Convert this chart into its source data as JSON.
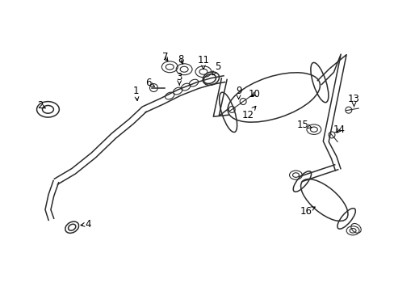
{
  "bg_color": "#ffffff",
  "line_color": "#2a2a2a",
  "text_color": "#000000",
  "label_fontsize": 8.5,
  "figsize": [
    4.89,
    3.6
  ],
  "dpi": 100
}
